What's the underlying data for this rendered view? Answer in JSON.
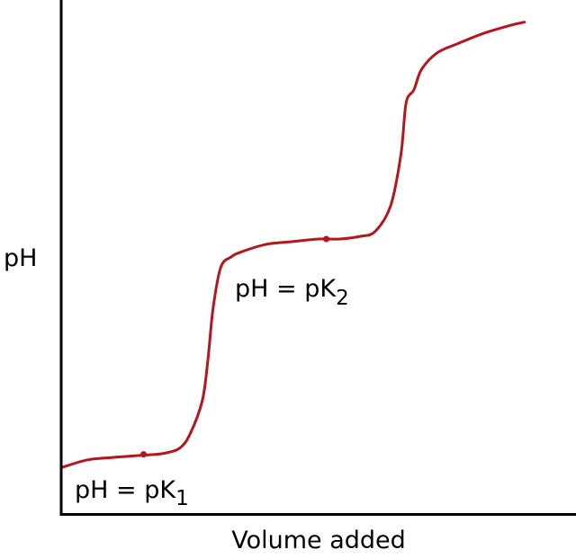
{
  "chart_data": {
    "type": "line",
    "title": "",
    "xlabel": "Volume added",
    "ylabel": "pH",
    "xlim": [
      0,
      100
    ],
    "ylim": [
      0,
      100
    ],
    "grid": false,
    "series": [
      {
        "color": "#b5161e",
        "x": [
          0,
          5,
          10,
          14,
          17,
          20,
          23,
          25,
          27.4,
          28.5,
          29.5,
          31,
          33,
          35,
          40,
          45,
          50,
          54,
          58,
          61,
          64,
          66,
          67,
          68.5,
          70,
          73,
          77,
          82,
          87,
          90
        ],
        "y": [
          9,
          10.5,
          11,
          11.3,
          11.5,
          11.8,
          12.8,
          15.5,
          22,
          30,
          40,
          48,
          50,
          51,
          52.5,
          53,
          53.5,
          53.5,
          54,
          55,
          60,
          70,
          80,
          82.5,
          86.5,
          89.7,
          91.5,
          93.5,
          95,
          95.7
        ]
      }
    ],
    "annotations": [
      {
        "id": "pk1",
        "point": [
          16,
          11.6
        ],
        "text_main": "pH = pK",
        "text_sub": "1"
      },
      {
        "id": "pk2",
        "point": [
          51.5,
          53.5
        ],
        "text_main": "pH = pK",
        "text_sub": "2"
      }
    ]
  }
}
